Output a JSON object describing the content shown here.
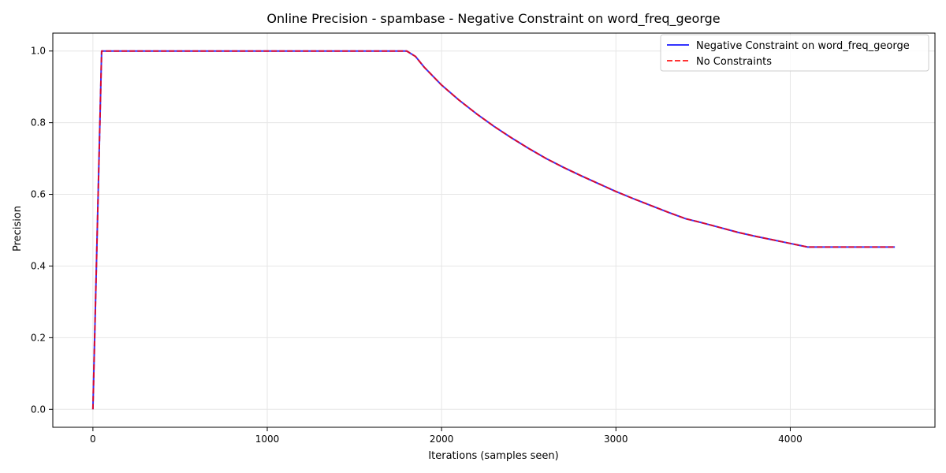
{
  "chart_data": {
    "type": "line",
    "title": "Online Precision - spambase - Negative Constraint on word_freq_george",
    "xlabel": "Iterations (samples seen)",
    "ylabel": "Precision",
    "xlim": [
      -230,
      4830
    ],
    "ylim": [
      -0.05,
      1.05
    ],
    "xticks": [
      0,
      1000,
      2000,
      3000,
      4000
    ],
    "yticks": [
      0.0,
      0.2,
      0.4,
      0.6,
      0.8,
      1.0
    ],
    "ytick_labels": [
      "0.0",
      "0.2",
      "0.4",
      "0.6",
      "0.8",
      "1.0"
    ],
    "grid": true,
    "legend_position": "top-right",
    "series": [
      {
        "name": "Negative Constraint on word_freq_george",
        "color": "#0000ff",
        "style": "solid",
        "x": [
          0,
          50,
          100,
          500,
          1000,
          1500,
          1800,
          1850,
          1900,
          2000,
          2100,
          2200,
          2300,
          2400,
          2500,
          2600,
          2700,
          2800,
          2900,
          3000,
          3100,
          3200,
          3300,
          3400,
          3500,
          3600,
          3700,
          3800,
          3900,
          4000,
          4100,
          4200,
          4300,
          4400,
          4500,
          4600
        ],
        "y": [
          0.0,
          1.0,
          1.0,
          1.0,
          1.0,
          1.0,
          1.0,
          0.985,
          0.955,
          0.905,
          0.863,
          0.825,
          0.79,
          0.758,
          0.728,
          0.7,
          0.675,
          0.652,
          0.63,
          0.608,
          0.588,
          0.569,
          0.55,
          0.532,
          0.52,
          0.507,
          0.494,
          0.483,
          0.473,
          0.463,
          0.453,
          0.453,
          0.453,
          0.453,
          0.453,
          0.453
        ]
      },
      {
        "name": "No Constraints",
        "color": "#ff0000",
        "style": "dashed",
        "x": [
          0,
          50,
          100,
          500,
          1000,
          1500,
          1800,
          1850,
          1900,
          2000,
          2100,
          2200,
          2300,
          2400,
          2500,
          2600,
          2700,
          2800,
          2900,
          3000,
          3100,
          3200,
          3300,
          3400,
          3500,
          3600,
          3700,
          3800,
          3900,
          4000,
          4100,
          4200,
          4300,
          4400,
          4500,
          4600
        ],
        "y": [
          0.0,
          1.0,
          1.0,
          1.0,
          1.0,
          1.0,
          1.0,
          0.985,
          0.955,
          0.905,
          0.863,
          0.825,
          0.79,
          0.758,
          0.728,
          0.7,
          0.675,
          0.652,
          0.63,
          0.608,
          0.588,
          0.569,
          0.55,
          0.532,
          0.52,
          0.507,
          0.494,
          0.483,
          0.473,
          0.463,
          0.453,
          0.453,
          0.453,
          0.453,
          0.453,
          0.453
        ]
      }
    ]
  }
}
